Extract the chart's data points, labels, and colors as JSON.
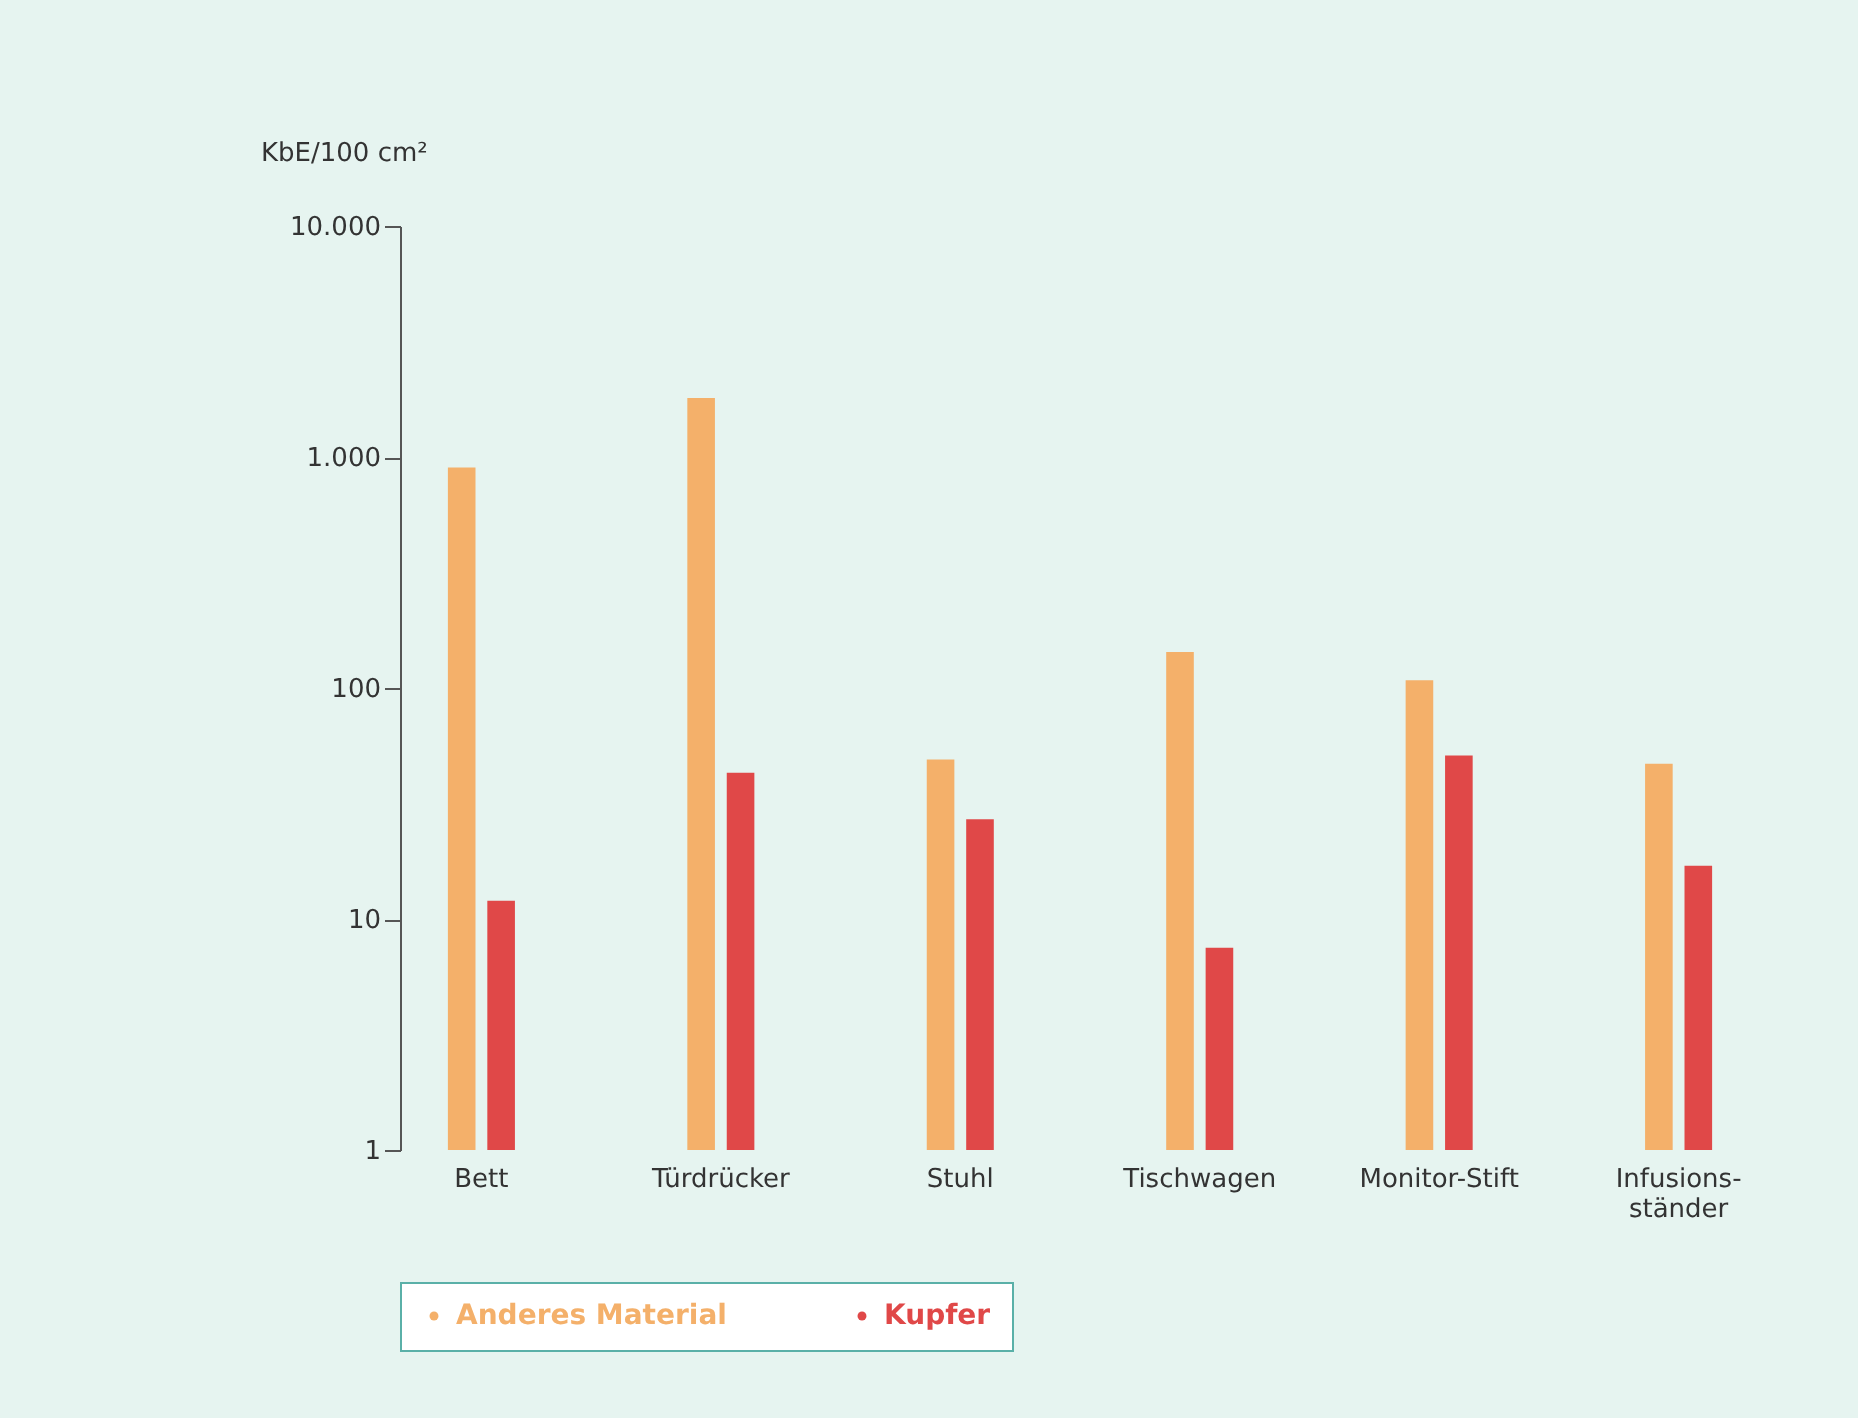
{
  "chart_data": {
    "type": "bar",
    "ylabel": "KbE/100 cm²",
    "categories": [
      "Bett",
      "Türdrücker",
      "Stuhl",
      "Tischwagen",
      "Monitor-Stift",
      "Infusions-\nständer"
    ],
    "series": [
      {
        "name": "Anderes Material",
        "color": "#f4b06a",
        "values": [
          900,
          1800,
          49,
          143,
          108,
          47
        ]
      },
      {
        "name": "Kupfer",
        "color": "#e04848",
        "values": [
          12,
          43,
          27,
          7.5,
          51,
          17
        ]
      }
    ],
    "log": true,
    "ylim": [
      1,
      10000
    ],
    "yticks": [
      1,
      10,
      100,
      {
        "value": 1000,
        "label": "1.000"
      },
      {
        "value": 10000,
        "label": "10.000"
      }
    ],
    "grid": false,
    "legend": "bottom"
  }
}
